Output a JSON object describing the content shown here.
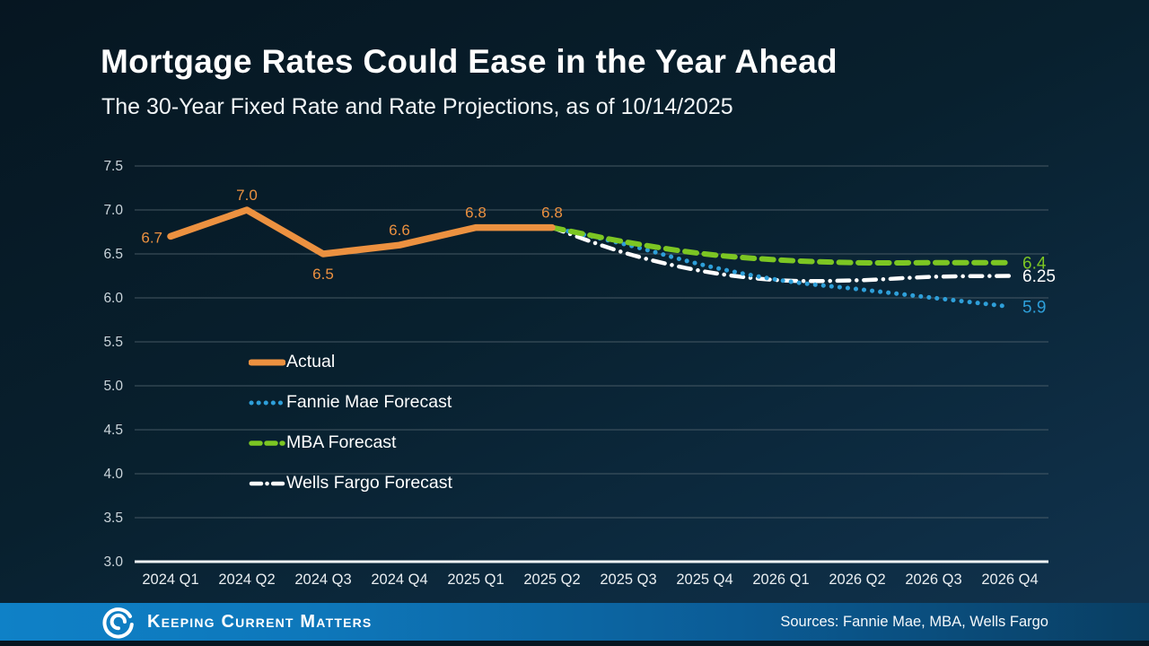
{
  "slide": {
    "title": "Mortgage Rates Could Ease in the Year Ahead",
    "subtitle": "The 30-Year Fixed Rate and Rate Projections, as of 10/14/2025"
  },
  "footer": {
    "brand": "Keeping Current Matters",
    "sources": "Sources: Fannie Mae, MBA, Wells Fargo"
  },
  "colors": {
    "background_top": "#061621",
    "background_bottom": "#113450",
    "actual": "#EC9140",
    "fannie_mae": "#2E9FD9",
    "mba": "#7CC623",
    "wells_fargo": "#FFFFFF",
    "gridline": "#5A6A74",
    "axis_line": "#EEF3F5",
    "y_tick_text": "#CBD5DB",
    "x_tick_text": "#E9EEF1",
    "footer_left": "#0F81C7",
    "footer_right": "#093E62"
  },
  "chart_data": {
    "type": "line",
    "title": "Mortgage Rates Could Ease in the Year Ahead",
    "subtitle": "The 30-Year Fixed Rate and Rate Projections, as of 10/14/2025",
    "categories": [
      "2024 Q1",
      "2024 Q2",
      "2024 Q3",
      "2024 Q4",
      "2025 Q1",
      "2025 Q2",
      "2025 Q3",
      "2025 Q4",
      "2026 Q1",
      "2026 Q2",
      "2026 Q3",
      "2026 Q4"
    ],
    "y_axis": {
      "min": 3.0,
      "max": 7.5,
      "step": 0.5,
      "tick_labels": [
        "7.5",
        "7.0",
        "6.5",
        "6.0",
        "5.5",
        "5.0",
        "4.5",
        "4.0",
        "3.5",
        "3.0"
      ]
    },
    "grid": true,
    "legend_position": "inside-left-middle",
    "series": [
      {
        "name": "Wells Fargo Forecast",
        "color": "#FFFFFF",
        "line_style": "dashdot",
        "start_index": 5,
        "values": [
          6.8,
          6.5,
          6.3,
          6.2,
          6.2,
          6.24,
          6.25
        ],
        "end_label": "6.25"
      },
      {
        "name": "Fannie Mae Forecast",
        "color": "#2E9FD9",
        "line_style": "dotted",
        "start_index": 5,
        "values": [
          6.8,
          6.6,
          6.37,
          6.2,
          6.1,
          6.0,
          5.9
        ],
        "end_label": "5.9"
      },
      {
        "name": "MBA Forecast",
        "color": "#7CC623",
        "line_style": "dashed",
        "start_index": 5,
        "values": [
          6.8,
          6.63,
          6.5,
          6.43,
          6.4,
          6.4,
          6.4
        ],
        "end_label": "6.4"
      },
      {
        "name": "Actual",
        "color": "#EC9140",
        "line_style": "solid",
        "start_index": 0,
        "values": [
          6.7,
          7.0,
          6.5,
          6.6,
          6.8,
          6.8
        ],
        "point_labels": [
          "6.7",
          "7.0",
          "6.5",
          "6.6",
          "6.8",
          "6.8"
        ],
        "point_label_pos": [
          "left",
          "above",
          "below",
          "above",
          "above",
          "above"
        ]
      }
    ],
    "legend_order": [
      "Actual",
      "Fannie Mae Forecast",
      "MBA Forecast",
      "Wells Fargo Forecast"
    ]
  }
}
